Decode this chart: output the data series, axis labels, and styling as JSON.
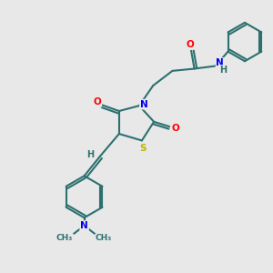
{
  "bg_color": "#e8e8e8",
  "bond_color": "#2d7070",
  "atom_colors": {
    "O": "#ff0000",
    "N": "#0000ee",
    "S": "#b8b800",
    "H": "#2d7070",
    "C": "#2d7070"
  },
  "figsize": [
    3.0,
    3.0
  ],
  "dpi": 100
}
